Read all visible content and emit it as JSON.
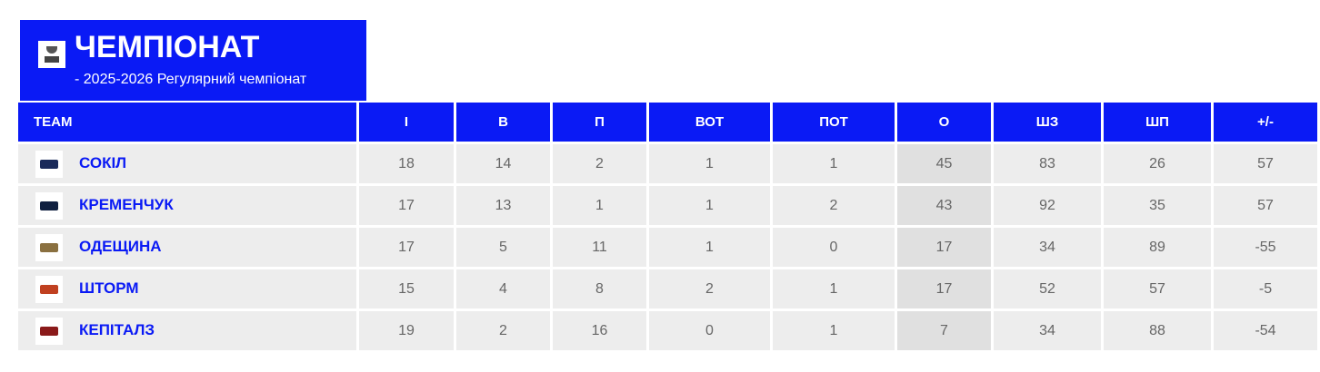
{
  "header": {
    "title": "ЧЕМПІОНАТ",
    "subtitle": "- 2025-2026 Регулярний чемпіонат"
  },
  "columns": [
    "TEAM",
    "І",
    "В",
    "П",
    "ВОТ",
    "ПОТ",
    "О",
    "ШЗ",
    "ШП",
    "+/-"
  ],
  "rows": [
    {
      "team": "СОКІЛ",
      "logo_color": "#1a2a5a",
      "values": [
        "18",
        "14",
        "2",
        "1",
        "1",
        "45",
        "83",
        "26",
        "57"
      ]
    },
    {
      "team": "КРЕМЕНЧУК",
      "logo_color": "#102040",
      "values": [
        "17",
        "13",
        "1",
        "1",
        "2",
        "43",
        "92",
        "35",
        "57"
      ]
    },
    {
      "team": "ОДЕЩИНА",
      "logo_color": "#8a7040",
      "values": [
        "17",
        "5",
        "11",
        "1",
        "0",
        "17",
        "34",
        "89",
        "-55"
      ]
    },
    {
      "team": "ШТОРМ",
      "logo_color": "#c04020",
      "values": [
        "15",
        "4",
        "8",
        "2",
        "1",
        "17",
        "52",
        "57",
        "-5"
      ]
    },
    {
      "team": "КЕПІТАЛЗ",
      "logo_color": "#8a1a1a",
      "values": [
        "19",
        "2",
        "16",
        "0",
        "1",
        "7",
        "34",
        "88",
        "-54"
      ]
    }
  ]
}
